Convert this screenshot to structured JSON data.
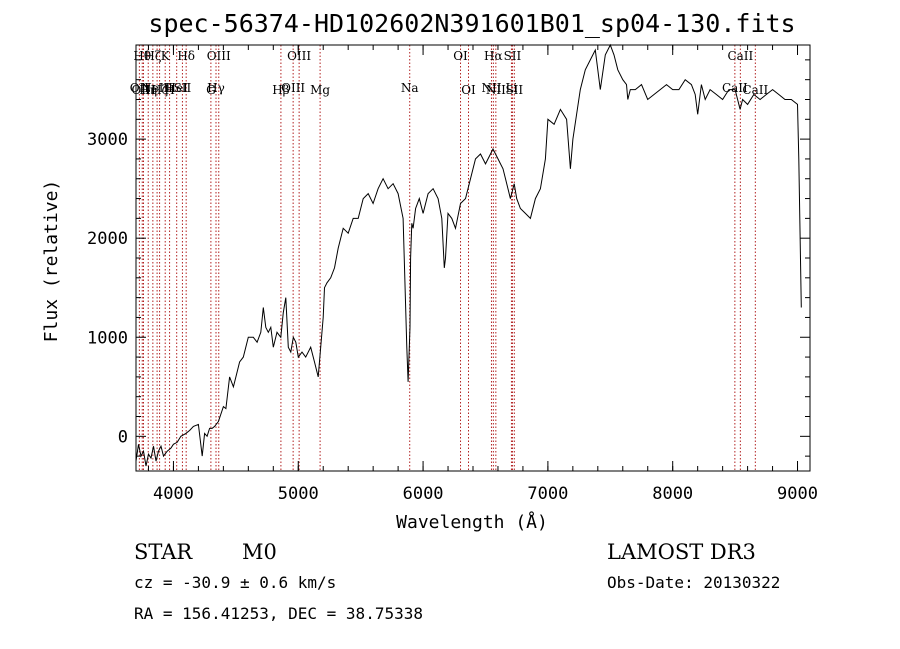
{
  "chart_data": {
    "type": "line",
    "title": "spec-56374-HD102602N391601B01_sp04-130.fits",
    "xlabel": "Wavelength (Å)",
    "ylabel": "Flux (relative)",
    "xlim": [
      3700,
      9100
    ],
    "ylim": [
      -350,
      3950
    ],
    "xticks": [
      4000,
      5000,
      6000,
      7000,
      8000,
      9000
    ],
    "yticks": [
      0,
      1000,
      2000,
      3000
    ],
    "grid": false,
    "series": [
      {
        "x": [
          3700,
          3720,
          3740,
          3760,
          3780,
          3800,
          3820,
          3840,
          3860,
          3880,
          3900,
          3920,
          3950,
          3980,
          4000,
          4030,
          4060,
          4100,
          4130,
          4160,
          4200,
          4230,
          4250,
          4270,
          4290,
          4310,
          4330,
          4360,
          4400,
          4420,
          4450,
          4480,
          4500,
          4530,
          4560,
          4600,
          4640,
          4670,
          4700,
          4720,
          4740,
          4760,
          4780,
          4800,
          4830,
          4860,
          4880,
          4900,
          4920,
          4940,
          4960,
          4980,
          5000,
          5030,
          5060,
          5100,
          5130,
          5160,
          5180,
          5200,
          5210,
          5230,
          5260,
          5290,
          5320,
          5360,
          5400,
          5440,
          5480,
          5520,
          5560,
          5600,
          5640,
          5680,
          5720,
          5760,
          5800,
          5840,
          5870,
          5880,
          5890,
          5895,
          5900,
          5910,
          5920,
          5940,
          5970,
          6000,
          6040,
          6080,
          6120,
          6150,
          6170,
          6180,
          6200,
          6230,
          6260,
          6300,
          6340,
          6380,
          6420,
          6460,
          6500,
          6540,
          6560,
          6580,
          6600,
          6620,
          6640,
          6660,
          6700,
          6730,
          6750,
          6780,
          6820,
          6860,
          6900,
          6940,
          6980,
          7000,
          7050,
          7100,
          7150,
          7180,
          7200,
          7230,
          7260,
          7300,
          7340,
          7380,
          7420,
          7460,
          7500,
          7530,
          7560,
          7600,
          7630,
          7640,
          7660,
          7700,
          7750,
          7800,
          7850,
          7900,
          7950,
          8000,
          8050,
          8100,
          8150,
          8180,
          8200,
          8230,
          8260,
          8300,
          8350,
          8400,
          8450,
          8500,
          8520,
          8540,
          8560,
          8600,
          8650,
          8700,
          8750,
          8800,
          8850,
          8900,
          8950,
          9000,
          9010,
          9030
        ],
        "y": [
          -250,
          -80,
          -200,
          -150,
          -300,
          -180,
          -220,
          -100,
          -250,
          -150,
          -100,
          -200,
          -150,
          -120,
          -80,
          -60,
          0,
          30,
          60,
          100,
          120,
          -200,
          30,
          0,
          80,
          80,
          100,
          150,
          300,
          280,
          600,
          500,
          600,
          750,
          800,
          1000,
          1000,
          950,
          1050,
          1300,
          1100,
          1050,
          1100,
          900,
          1050,
          1000,
          1250,
          1400,
          900,
          850,
          1000,
          950,
          800,
          850,
          800,
          900,
          750,
          600,
          900,
          1200,
          1500,
          1550,
          1600,
          1700,
          1900,
          2100,
          2050,
          2200,
          2200,
          2400,
          2450,
          2350,
          2500,
          2600,
          2500,
          2550,
          2450,
          2200,
          900,
          550,
          900,
          1100,
          1800,
          2150,
          2100,
          2300,
          2400,
          2250,
          2450,
          2500,
          2400,
          2200,
          1700,
          1800,
          2250,
          2200,
          2100,
          2350,
          2400,
          2600,
          2800,
          2850,
          2750,
          2850,
          2900,
          2850,
          2800,
          2750,
          2700,
          2600,
          2400,
          2550,
          2400,
          2300,
          2250,
          2200,
          2400,
          2500,
          2800,
          3200,
          3150,
          3300,
          3200,
          2700,
          3000,
          3250,
          3500,
          3700,
          3800,
          3900,
          3500,
          3850,
          3950,
          3850,
          3700,
          3600,
          3550,
          3400,
          3500,
          3500,
          3550,
          3400,
          3450,
          3500,
          3550,
          3500,
          3500,
          3600,
          3550,
          3450,
          3250,
          3550,
          3400,
          3500,
          3450,
          3400,
          3500,
          3500,
          3400,
          3300,
          3400,
          3350,
          3450,
          3400,
          3450,
          3500,
          3450,
          3400,
          3400,
          3350,
          2800,
          1300
        ]
      }
    ],
    "line_markers": [
      {
        "wl": 3727,
        "row": 2,
        "label": "OII"
      },
      {
        "wl": 3750,
        "row": 0,
        "label": "Hθ"
      },
      {
        "wl": 3760,
        "row": 3,
        "label": "OIII"
      },
      {
        "wl": 3798,
        "row": 3,
        "label": "Hη"
      },
      {
        "wl": 3835,
        "row": 0,
        "label": "Hζ"
      },
      {
        "wl": 3869,
        "row": 2,
        "label": "NeIII"
      },
      {
        "wl": 3889,
        "row": 3,
        "label": "Hζ"
      },
      {
        "wl": 3934,
        "row": 0,
        "label": "K"
      },
      {
        "wl": 3969,
        "row": 3,
        "label": "H"
      },
      {
        "wl": 4026,
        "row": 2,
        "label": "HeI"
      },
      {
        "wl": 4072,
        "row": 2,
        "label": "SII"
      },
      {
        "wl": 4102,
        "row": 0,
        "label": "Hδ"
      },
      {
        "wl": 4300,
        "row": 3,
        "label": "G"
      },
      {
        "wl": 4341,
        "row": 2,
        "label": "Hγ"
      },
      {
        "wl": 4363,
        "row": 0,
        "label": "OIII"
      },
      {
        "wl": 4861,
        "row": 3,
        "label": "Hβ"
      },
      {
        "wl": 4959,
        "row": 2,
        "label": "OIII"
      },
      {
        "wl": 5007,
        "row": 0,
        "label": "OIII"
      },
      {
        "wl": 5175,
        "row": 3,
        "label": "Mg"
      },
      {
        "wl": 5893,
        "row": 2,
        "label": "Na"
      },
      {
        "wl": 6300,
        "row": 0,
        "label": "OI"
      },
      {
        "wl": 6364,
        "row": 3,
        "label": "OI"
      },
      {
        "wl": 6548,
        "row": 2,
        "label": "NII"
      },
      {
        "wl": 6563,
        "row": 0,
        "label": "Hα"
      },
      {
        "wl": 6583,
        "row": 3,
        "label": "NII"
      },
      {
        "wl": 6708,
        "row": 2,
        "label": "Li"
      },
      {
        "wl": 6716,
        "row": 0,
        "label": "SII"
      },
      {
        "wl": 6731,
        "row": 3,
        "label": "SII"
      },
      {
        "wl": 8498,
        "row": 2,
        "label": "CaII"
      },
      {
        "wl": 8542,
        "row": 0,
        "label": "CaII"
      },
      {
        "wl": 8662,
        "row": 3,
        "label": "CaII"
      }
    ]
  },
  "info": {
    "class_label": "STAR",
    "subclass": "M0",
    "cz": "cz = -30.9 ± 0.6 km/s",
    "coords": "RA = 156.41253, DEC =  38.75338",
    "survey": "LAMOST DR3",
    "obs_date": "Obs-Date: 20130322"
  },
  "colors": {
    "marker_line": "#b22222",
    "spectrum": "#000000",
    "axes": "#000000"
  }
}
